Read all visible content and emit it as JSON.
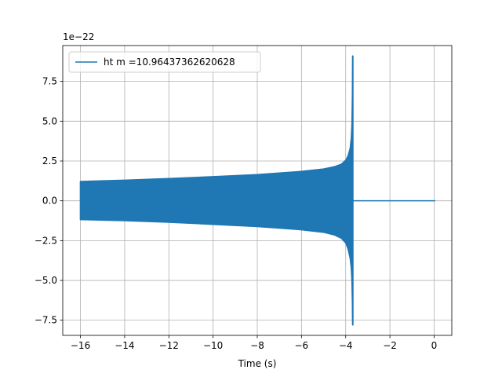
{
  "chart_data": {
    "type": "line",
    "title": "",
    "xlabel": "Time (s)",
    "ylabel": "",
    "y_offset_label": "1e−22",
    "xlim": [
      -16.8,
      0.8
    ],
    "ylim": [
      -8.45,
      9.75
    ],
    "y_scale_exponent": -22,
    "grid": true,
    "legend_position": "top-left",
    "x_ticks": [
      -16,
      -14,
      -12,
      -10,
      -8,
      -6,
      -4,
      -2,
      0
    ],
    "x_tick_labels": [
      "−16",
      "−14",
      "−12",
      "−10",
      "−8",
      "−6",
      "−4",
      "−2",
      "0"
    ],
    "y_ticks": [
      -7.5,
      -5.0,
      -2.5,
      0.0,
      2.5,
      5.0,
      7.5
    ],
    "y_tick_labels": [
      "−7.5",
      "−5.0",
      "−2.5",
      "0.0",
      "2.5",
      "5.0",
      "7.5"
    ],
    "series": [
      {
        "name": "ht m =10.96437362620628",
        "color": "#1f77b4",
        "x_start": -16.0,
        "x_end": 0.05,
        "merger_time": -3.68,
        "envelope": {
          "x": [
            -16.0,
            -14.0,
            -12.0,
            -10.0,
            -8.0,
            -6.0,
            -5.0,
            -4.5,
            -4.2,
            -4.0,
            -3.9,
            -3.8,
            -3.75,
            -3.72,
            -3.7,
            -3.69,
            -3.68
          ],
          "upper": [
            1.22,
            1.3,
            1.4,
            1.52,
            1.65,
            1.85,
            2.0,
            2.15,
            2.3,
            2.55,
            2.8,
            3.3,
            3.9,
            4.8,
            6.5,
            8.0,
            9.1
          ],
          "lower": [
            -1.18,
            -1.25,
            -1.35,
            -1.48,
            -1.62,
            -1.82,
            -1.98,
            -2.15,
            -2.35,
            -2.65,
            -3.0,
            -3.6,
            -4.2,
            -5.0,
            -6.3,
            -7.3,
            -7.8
          ]
        },
        "post_merger_value": 0.0
      }
    ]
  }
}
